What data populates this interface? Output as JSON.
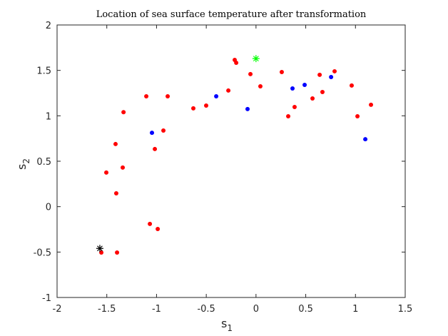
{
  "chart_data": {
    "type": "scatter",
    "title": "Location of sea surface temperature after transformation",
    "xlabel": {
      "base": "s",
      "sub": "1"
    },
    "ylabel": {
      "base": "s",
      "sub": "2"
    },
    "xlim": [
      -2,
      1.5
    ],
    "xticks": [
      -2,
      -1.5,
      -1,
      -0.5,
      0,
      0.5,
      1,
      1.5
    ],
    "ylim": [
      -1,
      2
    ],
    "yticks": [
      -1,
      -0.5,
      0,
      0.5,
      1,
      1.5,
      2
    ],
    "series": [
      {
        "color": "#ff0000",
        "marker": "dot",
        "x": [
          -1.555,
          -1.397,
          -1.505,
          -1.405,
          -1.412,
          -1.34,
          -1.332,
          -1.103,
          -1.067,
          -0.988,
          -1.017,
          -0.931,
          -0.888,
          -0.63,
          -0.501,
          -0.214,
          -0.199,
          -0.278,
          -0.056,
          0.044,
          0.259,
          0.324,
          0.388,
          0.568,
          0.64,
          0.668,
          0.79,
          0.962,
          1.02,
          1.156
        ],
        "values": [
          -0.505,
          -0.505,
          0.375,
          0.147,
          0.689,
          0.43,
          1.04,
          1.215,
          -0.19,
          -0.246,
          0.634,
          0.838,
          1.215,
          1.082,
          1.113,
          1.615,
          1.584,
          1.278,
          1.459,
          1.325,
          1.482,
          0.995,
          1.097,
          1.191,
          1.451,
          1.262,
          1.49,
          1.333,
          0.995,
          1.121
        ]
      },
      {
        "color": "#0000ff",
        "marker": "dot",
        "x": [
          -1.046,
          -0.4,
          -0.085,
          0.367,
          0.489,
          0.755,
          1.099
        ],
        "values": [
          0.813,
          1.215,
          1.074,
          1.301,
          1.34,
          1.427,
          0.742
        ]
      },
      {
        "color": "#00ff00",
        "marker": "star",
        "x": [
          0
        ],
        "values": [
          1.63
        ]
      },
      {
        "color": "#000000",
        "marker": "star",
        "x": [
          -1.57
        ],
        "values": [
          -0.46
        ]
      }
    ]
  }
}
